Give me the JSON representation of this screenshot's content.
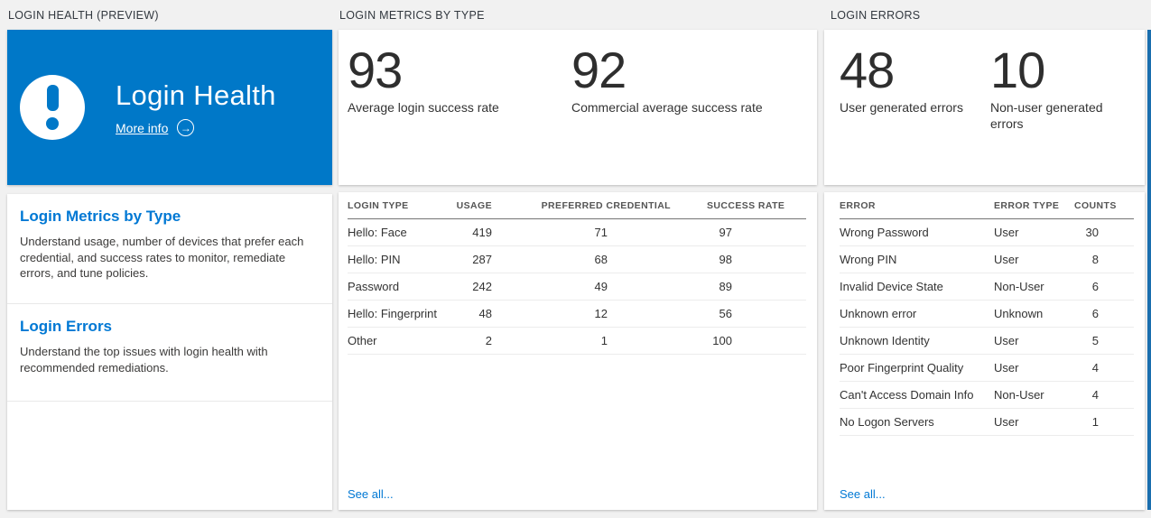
{
  "colors": {
    "tile_accent_blue": "#0078c8",
    "link_blue": "#0078d4",
    "stat_text": "#2e2e2e"
  },
  "panels": {
    "login_health": {
      "header": "LOGIN HEALTH (PREVIEW)",
      "tile": {
        "title": "Login Health",
        "more_info_label": "More info",
        "icon": "exclamation-icon",
        "arrow_icon": "arrow-right-circle-icon",
        "arrow_glyph": "→"
      },
      "sections": [
        {
          "title": "Login Metrics by Type",
          "description": "Understand usage, number of devices that prefer each credential, and success rates to monitor, remediate errors, and tune policies."
        },
        {
          "title": "Login Errors",
          "description": "Understand the top issues with login health with recommended remediations."
        }
      ]
    },
    "login_metrics": {
      "header": "LOGIN METRICS BY TYPE",
      "stats": [
        {
          "value": "93",
          "label": "Average login success rate"
        },
        {
          "value": "92",
          "label": "Commercial average success rate"
        }
      ],
      "table": {
        "columns": [
          "LOGIN TYPE",
          "USAGE",
          "PREFERRED CREDENTIAL",
          "SUCCESS RATE"
        ],
        "rows": [
          [
            "Hello: Face",
            "419",
            "71",
            "97"
          ],
          [
            "Hello: PIN",
            "287",
            "68",
            "98"
          ],
          [
            "Password",
            "242",
            "49",
            "89"
          ],
          [
            "Hello: Fingerprint",
            "48",
            "12",
            "56"
          ],
          [
            "Other",
            "2",
            "1",
            "100"
          ]
        ]
      },
      "see_all_label": "See all..."
    },
    "login_errors": {
      "header": "LOGIN ERRORS",
      "stats": [
        {
          "value": "48",
          "label": "User generated errors"
        },
        {
          "value": "10",
          "label": "Non-user generated errors"
        }
      ],
      "table": {
        "columns": [
          "ERROR",
          "ERROR TYPE",
          "COUNTS"
        ],
        "rows": [
          [
            "Wrong Password",
            "User",
            "30"
          ],
          [
            "Wrong PIN",
            "User",
            "8"
          ],
          [
            "Invalid Device State",
            "Non-User",
            "6"
          ],
          [
            "Unknown error",
            "Unknown",
            "6"
          ],
          [
            "Unknown Identity",
            "User",
            "5"
          ],
          [
            "Poor Fingerprint Quality",
            "User",
            "4"
          ],
          [
            "Can't Access Domain Info",
            "Non-User",
            "4"
          ],
          [
            "No Logon Servers",
            "User",
            "1"
          ]
        ]
      },
      "see_all_label": "See all..."
    }
  }
}
